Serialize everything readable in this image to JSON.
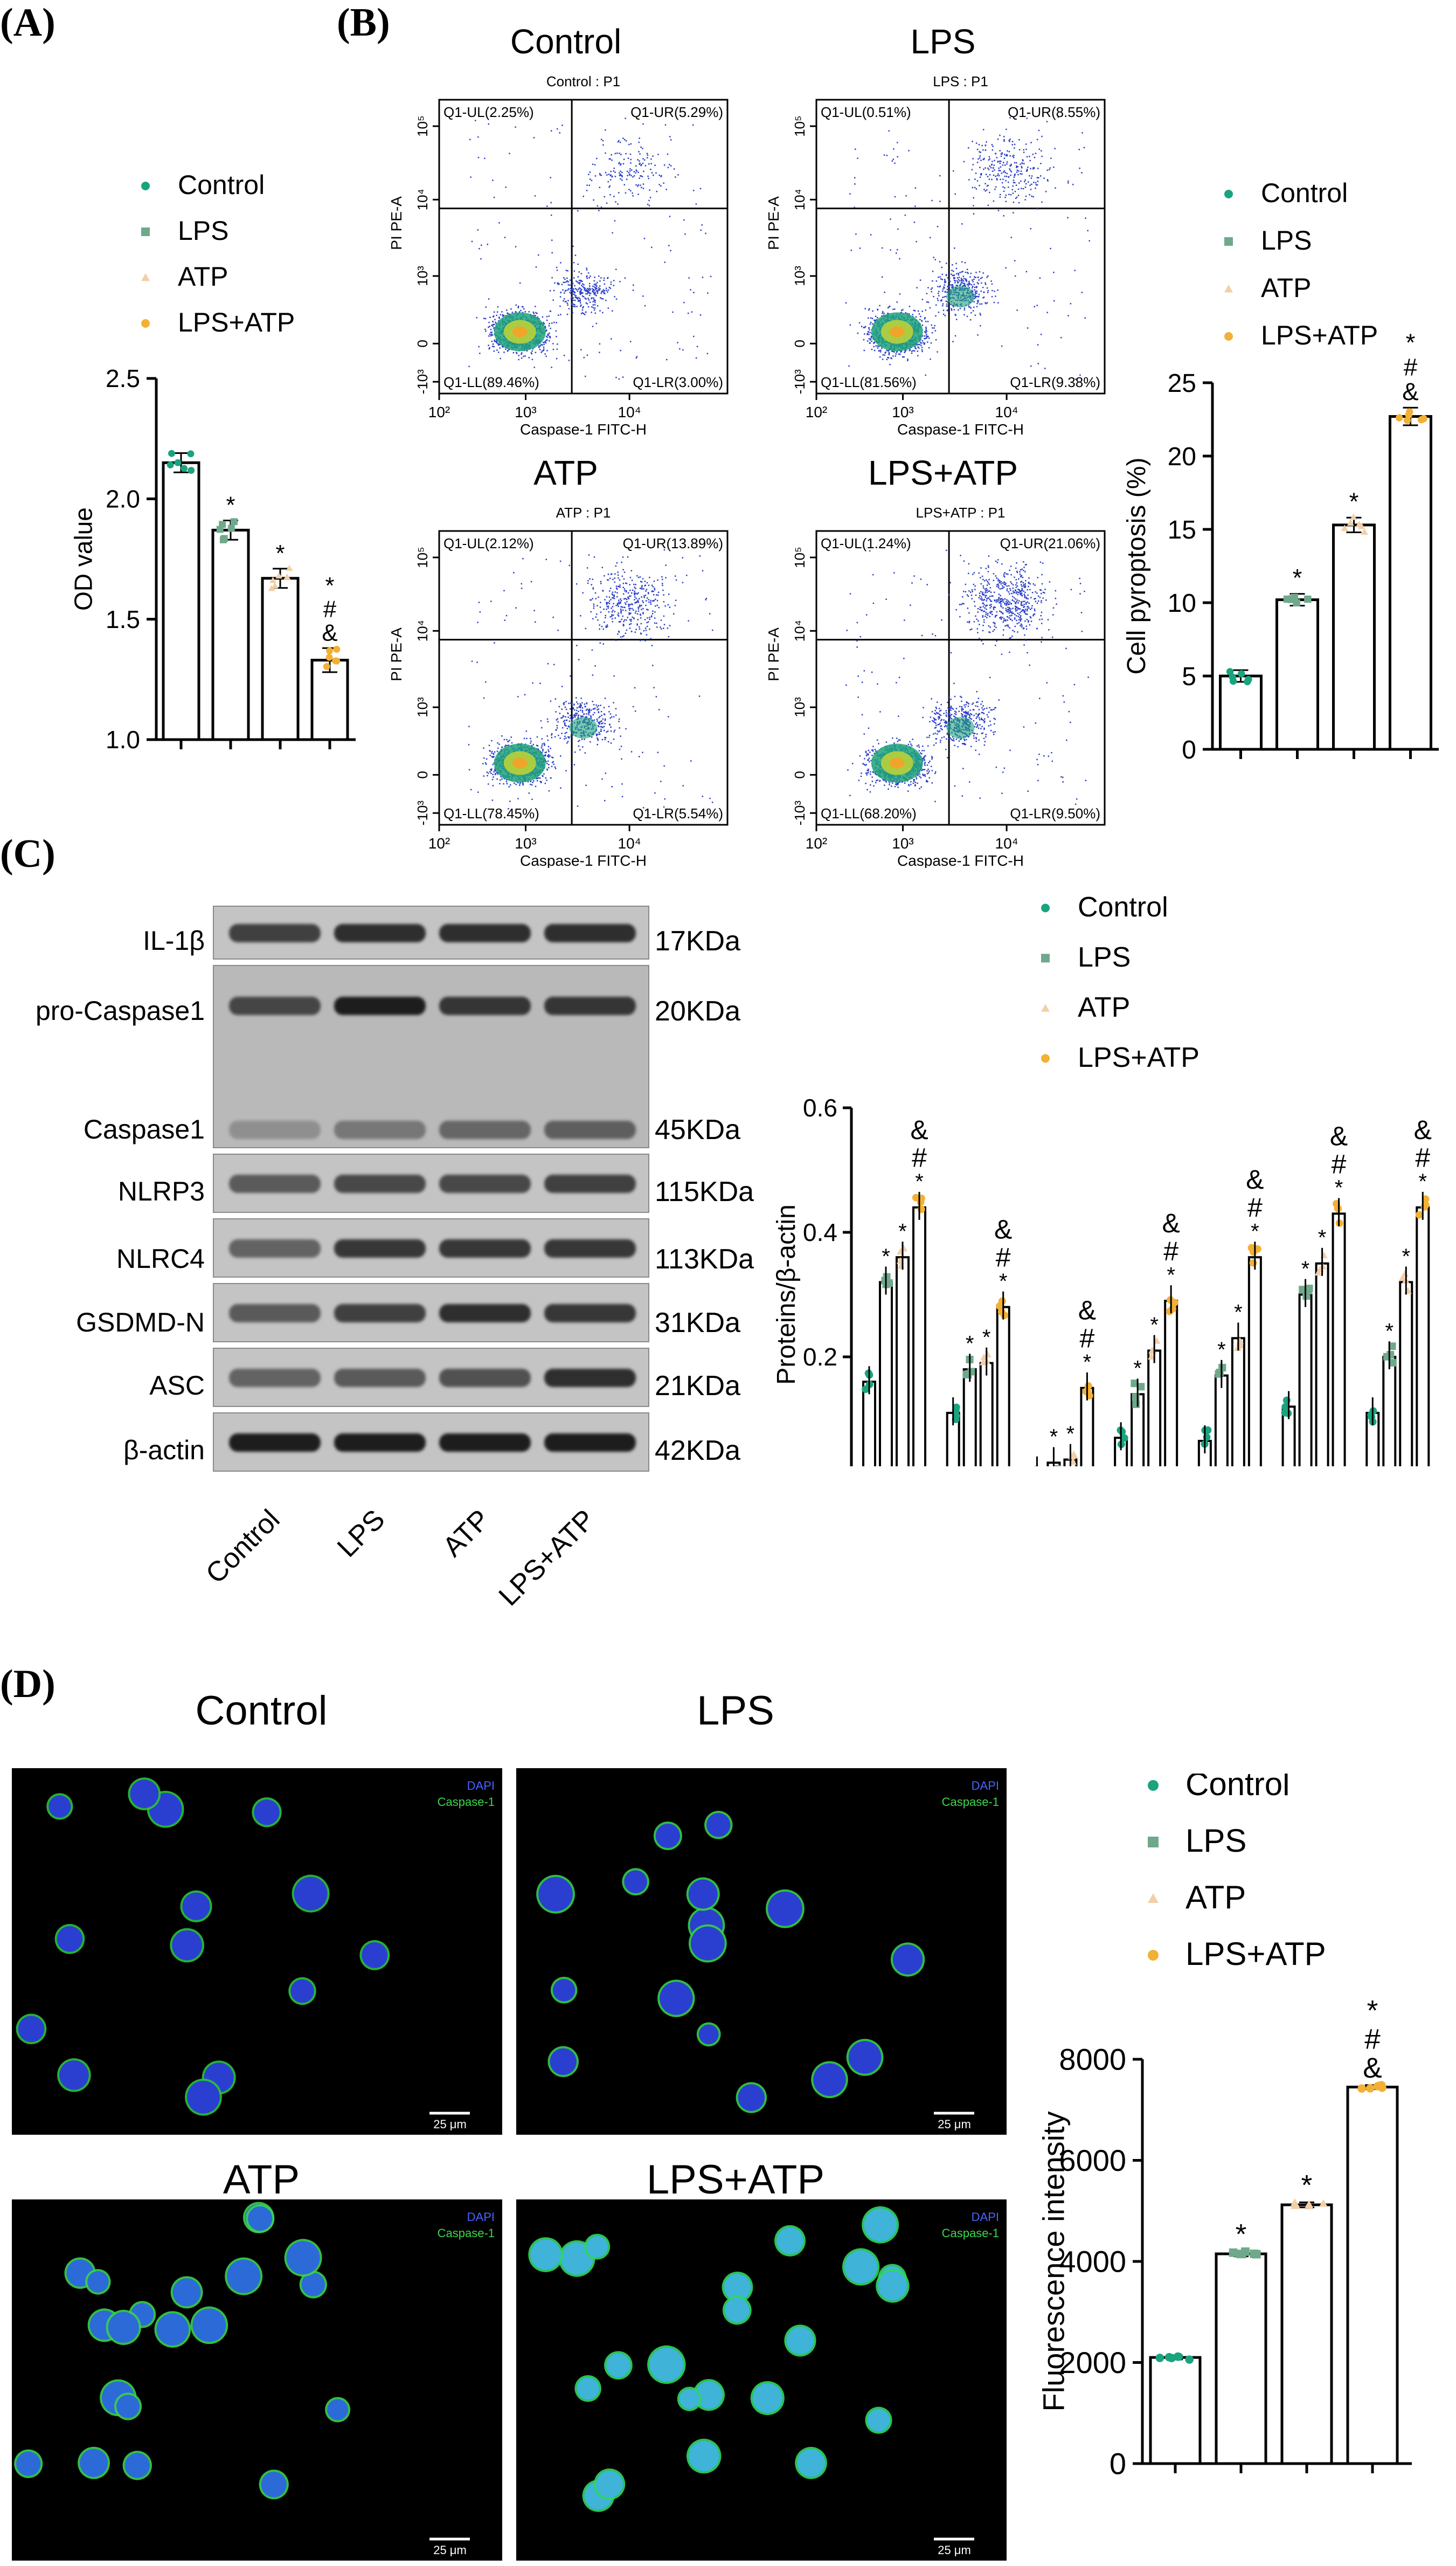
{
  "panels": {
    "a": "(A)",
    "b": "(B)",
    "c": "(C)",
    "d": "(D)"
  },
  "colors": {
    "control": "#1aa37f",
    "lps": "#6fa98c",
    "atp": "#f2cfa8",
    "lps_atp": "#f2b035"
  },
  "legend": [
    "Control",
    "LPS",
    "ATP",
    "LPS+ATP"
  ],
  "flow": {
    "plots": [
      {
        "title": "Control",
        "subtitle": "Control : P1",
        "ul": "Q1-UL(2.25%)",
        "ur": "Q1-UR(5.29%)",
        "ll": "Q1-LL(89.46%)",
        "lr": "Q1-LR(3.00%)"
      },
      {
        "title": "LPS",
        "subtitle": "LPS : P1",
        "ul": "Q1-UL(0.51%)",
        "ur": "Q1-UR(8.55%)",
        "ll": "Q1-LL(81.56%)",
        "lr": "Q1-LR(9.38%)"
      },
      {
        "title": "ATP",
        "subtitle": "ATP : P1",
        "ul": "Q1-UL(2.12%)",
        "ur": "Q1-UR(13.89%)",
        "ll": "Q1-LL(78.45%)",
        "lr": "Q1-LR(5.54%)"
      },
      {
        "title": "LPS+ATP",
        "subtitle": "LPS+ATP : P1",
        "ul": "Q1-UL(1.24%)",
        "ur": "Q1-UR(21.06%)",
        "ll": "Q1-LL(68.20%)",
        "lr": "Q1-LR(9.50%)"
      }
    ],
    "xlabel": "Caspase-1 FITC-H",
    "ylabel": "PI PE-A",
    "xticks": [
      "10²",
      "10³",
      "10⁴"
    ],
    "yticks": [
      "-10³",
      "0",
      "10³",
      "10⁴",
      "10⁵"
    ]
  },
  "blot": {
    "bands": [
      {
        "label": "IL-1β",
        "kda": "17KDa"
      },
      {
        "label": "pro-Caspase1",
        "kda": "20KDa"
      },
      {
        "label": "Caspase1",
        "kda": "45KDa"
      },
      {
        "label": "NLRP3",
        "kda": "115KDa"
      },
      {
        "label": "NLRC4",
        "kda": "113KDa"
      },
      {
        "label": "GSDMD-N",
        "kda": "31KDa"
      },
      {
        "label": "ASC",
        "kda": "21KDa"
      },
      {
        "label": "β-actin",
        "kda": "42KDa"
      }
    ],
    "lanes": [
      "Control",
      "LPS",
      "ATP",
      "LPS+ATP"
    ]
  },
  "micro": {
    "titles": [
      "Control",
      "LPS",
      "ATP",
      "LPS+ATP"
    ],
    "dapi": "DAPI",
    "caspase": "Caspase-1",
    "scale": "25 μm"
  },
  "chart_data": [
    {
      "id": "A",
      "type": "bar",
      "categories": [
        "Control",
        "LPS",
        "ATP",
        "LPS+ATP"
      ],
      "values": [
        2.15,
        1.87,
        1.67,
        1.33
      ],
      "errors": [
        0.04,
        0.04,
        0.04,
        0.05
      ],
      "annotations": [
        "",
        "*",
        "*",
        "*\n#\n&"
      ],
      "ylabel": "OD value",
      "ylim": [
        1.0,
        2.5
      ],
      "yticks": [
        "1.0",
        "1.5",
        "2.0",
        "2.5"
      ]
    },
    {
      "id": "B",
      "type": "bar",
      "categories": [
        "Control",
        "LPS",
        "ATP",
        "LPS+ATP"
      ],
      "values": [
        5.0,
        10.2,
        15.3,
        22.7
      ],
      "errors": [
        0.4,
        0.4,
        0.5,
        0.6
      ],
      "annotations": [
        "",
        "*",
        "*",
        "*\n#\n&"
      ],
      "ylabel": "Cell pyroptosis (%)",
      "ylim": [
        0,
        25
      ],
      "yticks": [
        "0",
        "5",
        "10",
        "15",
        "20",
        "25"
      ]
    },
    {
      "id": "C",
      "type": "bar",
      "categories": [
        "IL-1β",
        "pro-Caspase-1",
        "Caspase-1",
        "NLRP3",
        "NLRC4",
        "GSDMD-N",
        "ASC"
      ],
      "series": [
        {
          "name": "Control",
          "values": [
            0.16,
            0.11,
            0.015,
            0.07,
            0.065,
            0.12,
            0.11
          ]
        },
        {
          "name": "LPS",
          "values": [
            0.32,
            0.18,
            0.03,
            0.14,
            0.17,
            0.3,
            0.2
          ]
        },
        {
          "name": "ATP",
          "values": [
            0.36,
            0.19,
            0.035,
            0.21,
            0.23,
            0.35,
            0.32
          ]
        },
        {
          "name": "LPS+ATP",
          "values": [
            0.44,
            0.28,
            0.15,
            0.29,
            0.36,
            0.43,
            0.44
          ]
        }
      ],
      "ylabel": "Proteins/β-actin",
      "ylim": [
        0,
        0.6
      ],
      "yticks": [
        "0.0",
        "0.2",
        "0.4",
        "0.6"
      ]
    },
    {
      "id": "D",
      "type": "bar",
      "categories": [
        "Control",
        "LPS",
        "ATP",
        "LPS+ATP"
      ],
      "values": [
        2100,
        4150,
        5120,
        7450
      ],
      "errors": [
        40,
        50,
        50,
        40
      ],
      "annotations": [
        "",
        "*",
        "*",
        "*\n#\n&"
      ],
      "ylabel": "Fluorescence intensity",
      "ylim": [
        0,
        8000
      ],
      "yticks": [
        "0",
        "2000",
        "4000",
        "6000",
        "8000"
      ]
    }
  ]
}
